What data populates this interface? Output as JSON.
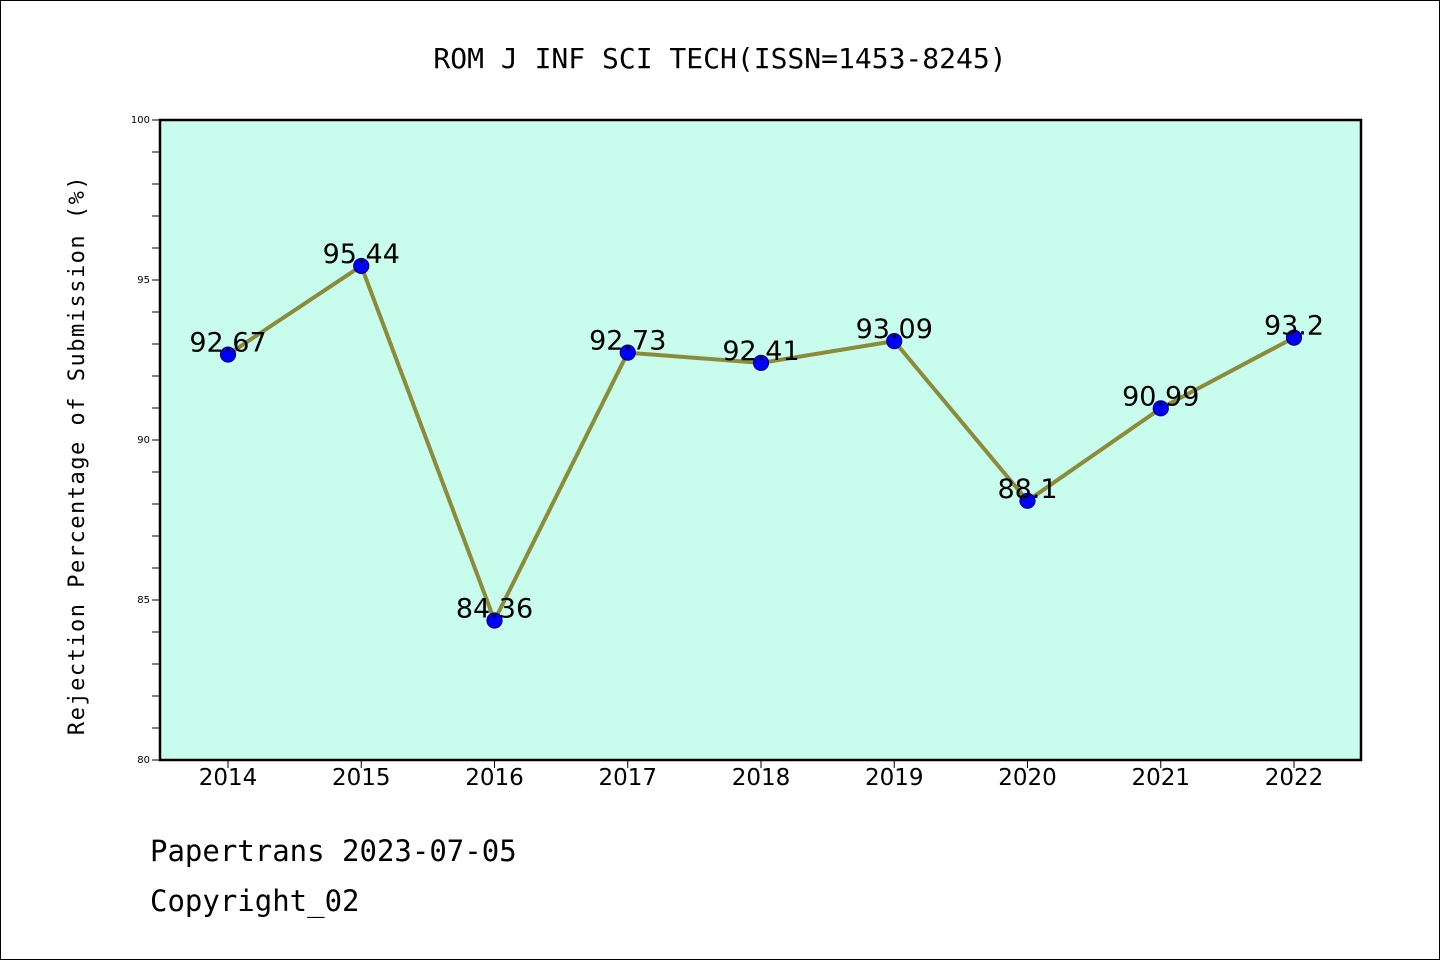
{
  "chart_data": {
    "type": "line",
    "title": "ROM J INF SCI TECH(ISSN=1453-8245)",
    "xlabel": "",
    "ylabel": "Rejection Percentage of Submission (%)",
    "categories": [
      "2014",
      "2015",
      "2016",
      "2017",
      "2018",
      "2019",
      "2020",
      "2021",
      "2022"
    ],
    "series": [
      {
        "values": [
          92.67,
          95.44,
          84.36,
          92.73,
          92.41,
          93.09,
          88.1,
          90.99,
          93.2
        ]
      }
    ],
    "data_labels": [
      "92.67",
      "95.44",
      "84.36",
      "92.73",
      "92.41",
      "93.09",
      "88.1",
      "90.99",
      "93.2"
    ],
    "ylim": [
      80,
      100
    ],
    "yticks": [
      80,
      85,
      90,
      95,
      100
    ],
    "y_minor_step": 1,
    "grid": false,
    "legend": "none",
    "colors": {
      "plot_background": "#c8fcec",
      "line": "#8b8b3a",
      "marker": "#0000ff",
      "marker_edge": "#00007a",
      "axes": "#000000"
    }
  },
  "footer": {
    "line1": "Papertrans 2023-07-05",
    "line2": "Copyright_02"
  }
}
